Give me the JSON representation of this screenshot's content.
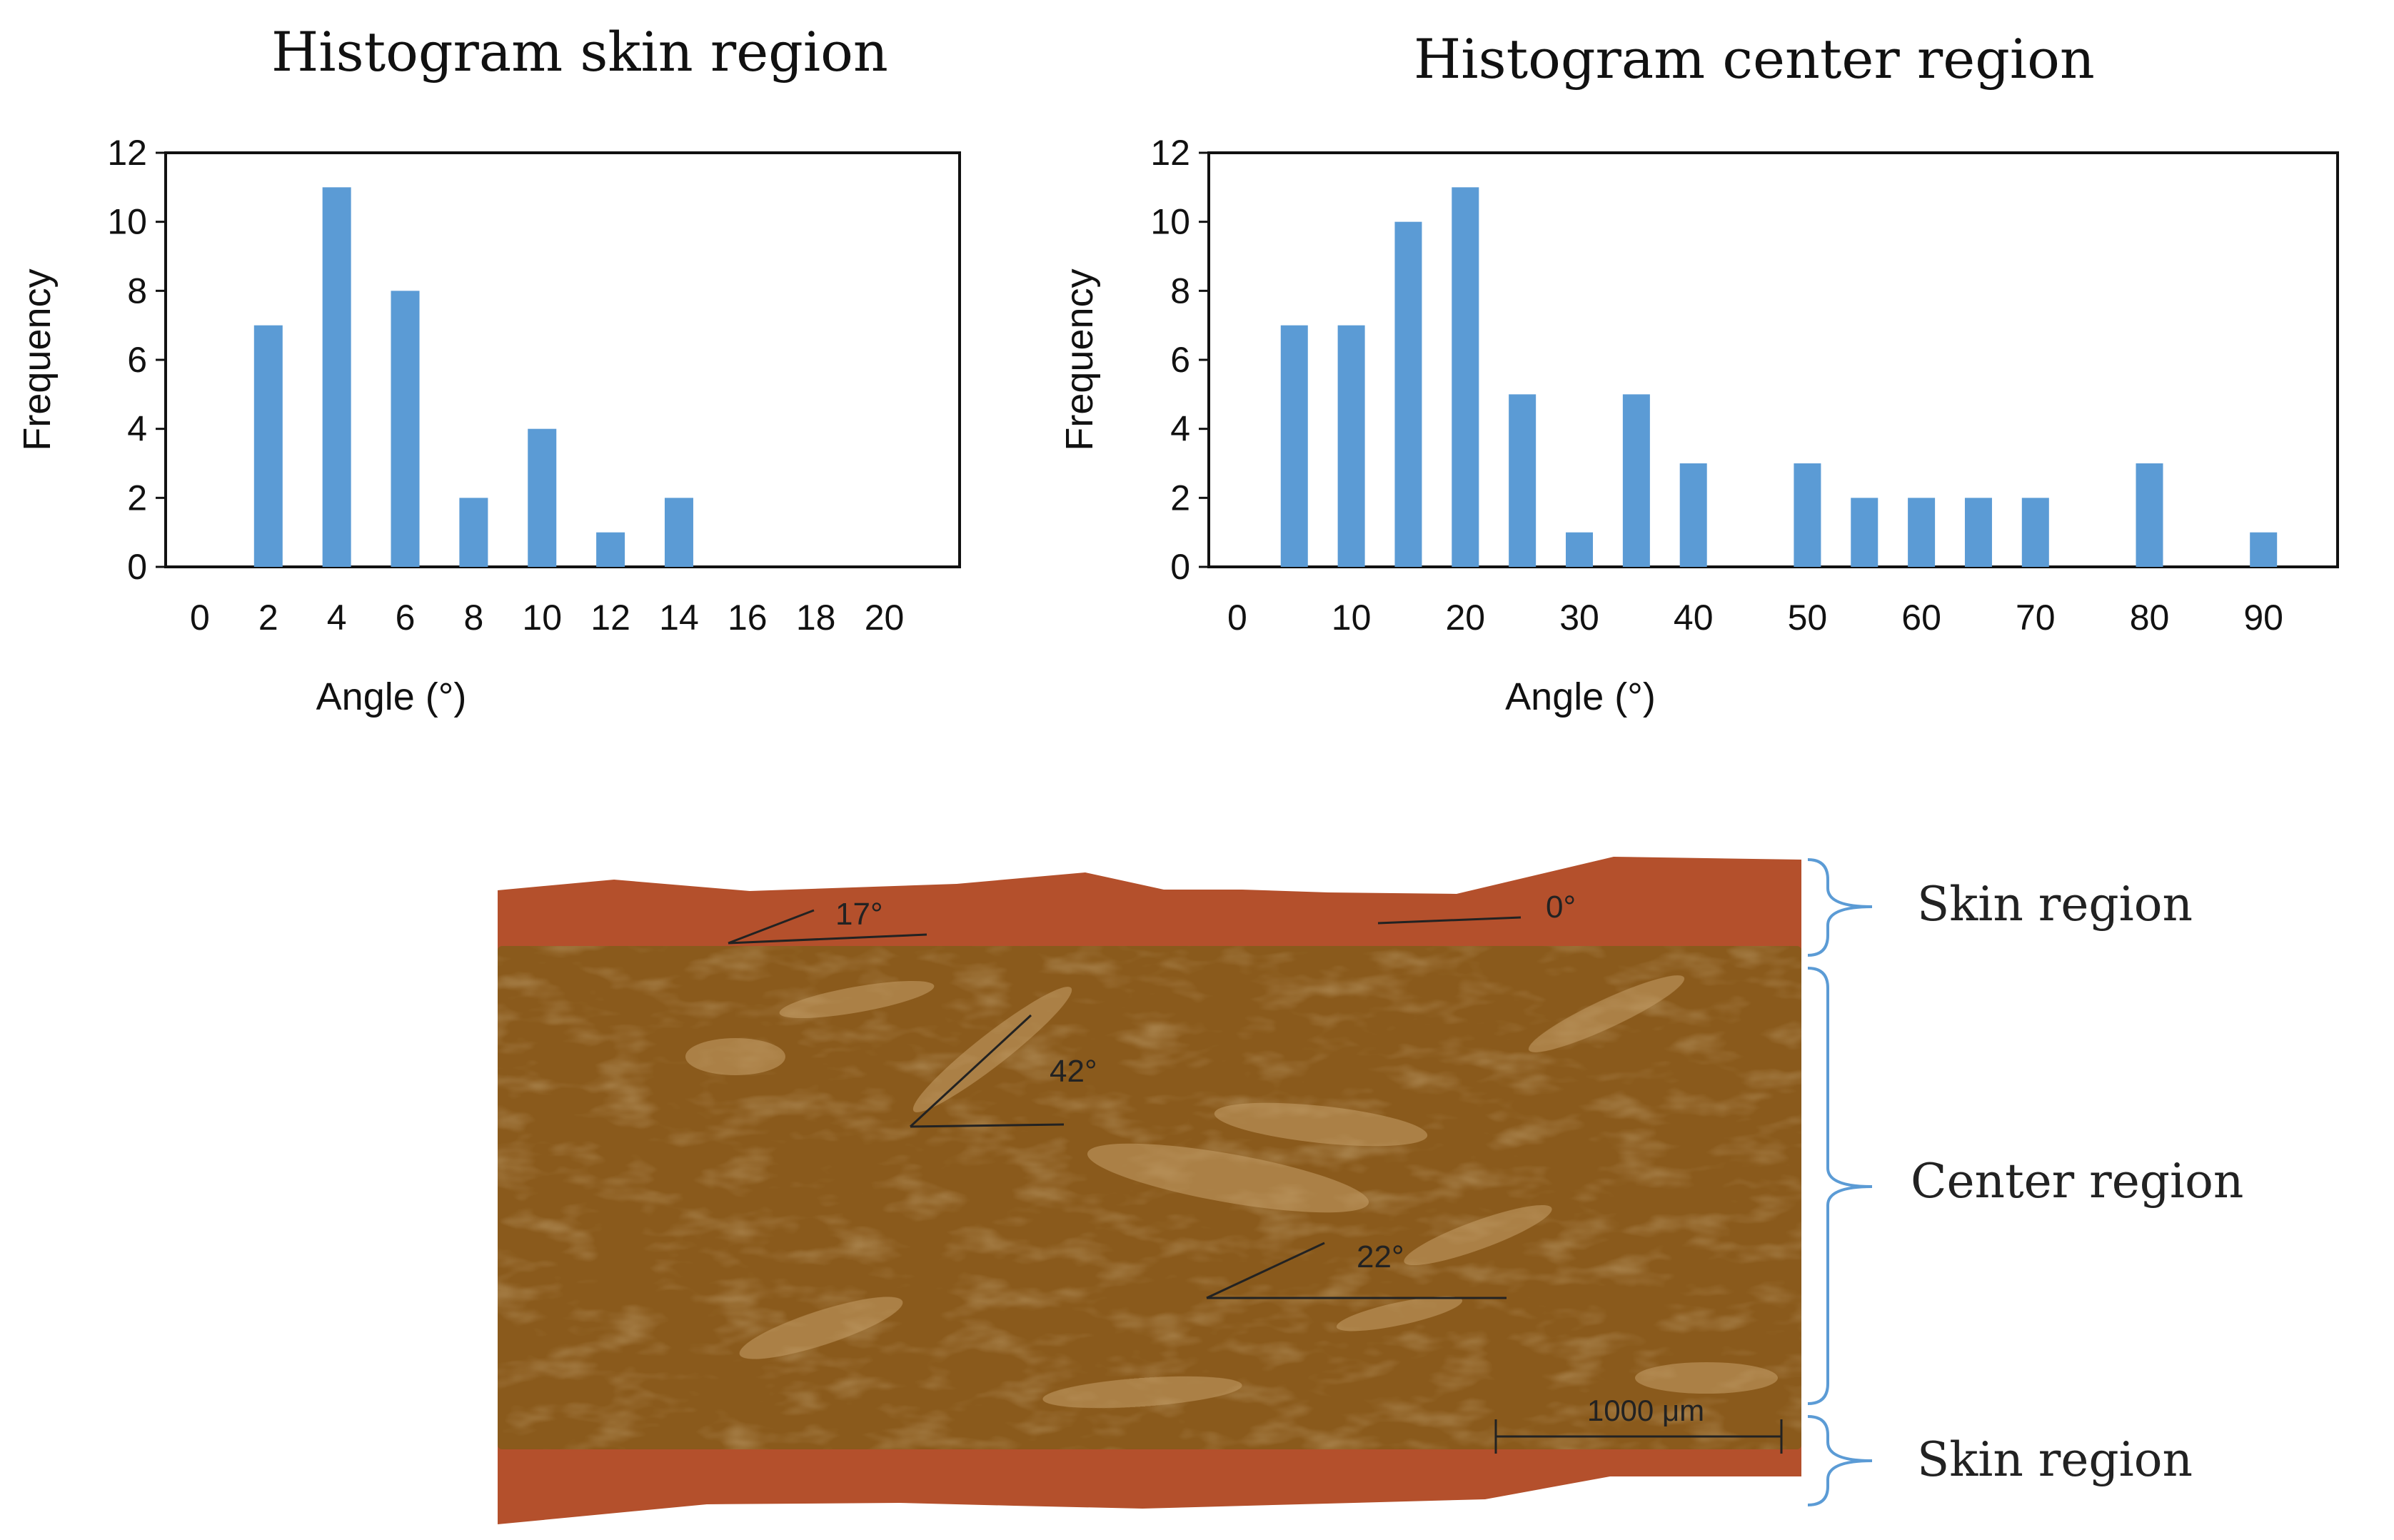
{
  "chart_data": [
    {
      "type": "bar",
      "title": "Histogram skin region",
      "xlabel": "Angle (°)",
      "ylabel": "Frequency",
      "x_ticks": [
        0,
        2,
        4,
        6,
        8,
        10,
        12,
        14,
        16,
        18,
        20
      ],
      "x": [
        2,
        4,
        6,
        8,
        10,
        12,
        14
      ],
      "values": [
        7,
        11,
        8,
        2,
        4,
        1,
        2
      ],
      "xlim": [
        -1,
        22.2
      ],
      "ylim": [
        0,
        12
      ],
      "y_ticks": [
        0,
        2,
        4,
        6,
        8,
        10,
        12
      ],
      "grid": false,
      "color": "#5b9bd5"
    },
    {
      "type": "bar",
      "title": "Histogram center region",
      "xlabel": "Angle (°)",
      "ylabel": "Frequency",
      "x_ticks": [
        0,
        10,
        20,
        30,
        40,
        50,
        60,
        70,
        80,
        90
      ],
      "x": [
        5,
        10,
        15,
        20,
        25,
        30,
        35,
        40,
        50,
        55,
        60,
        65,
        70,
        80,
        90
      ],
      "values": [
        7,
        7,
        10,
        11,
        5,
        1,
        5,
        3,
        3,
        2,
        2,
        2,
        2,
        3,
        1
      ],
      "xlim": [
        -2.5,
        96.5
      ],
      "ylim": [
        0,
        12
      ],
      "y_ticks": [
        0,
        2,
        4,
        6,
        8,
        10,
        12
      ],
      "grid": false,
      "color": "#5b9bd5"
    }
  ],
  "micrograph": {
    "labels": {
      "skin_top": "Skin region",
      "center": "Center region",
      "skin_bottom": "Skin region"
    },
    "angles": {
      "a17": "17°",
      "a0": "0°",
      "a42": "42°",
      "a22": "22°"
    },
    "scale_bar": "1000 μm",
    "colors": {
      "skin": "#b4502c",
      "core": "#8a5a1c",
      "brace": "#5b9bd5"
    }
  }
}
